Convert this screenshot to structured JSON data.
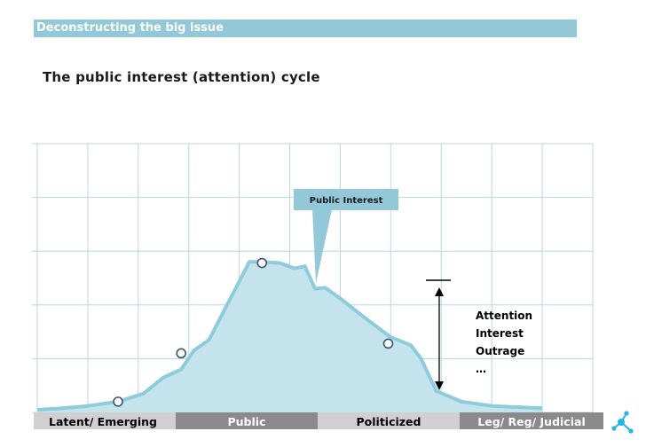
{
  "header": {
    "title": "Deconstructing the big issue"
  },
  "subtitle": "The public interest (attention) cycle",
  "callout": "Public Interest",
  "arrow_notes": [
    "Attention",
    "Interest",
    "Outrage",
    "…"
  ],
  "stages": [
    {
      "label": "Latent/ Emerging",
      "bg": "#d0d0d0",
      "fg": "#000000"
    },
    {
      "label": "Public",
      "bg": "#8a8a8a",
      "fg": "#ffffff"
    },
    {
      "label": "Politicized",
      "bg": "#d0d0d0",
      "fg": "#000000"
    },
    {
      "label": "Leg/ Reg/ Judicial",
      "bg": "#8a8a8a",
      "fg": "#ffffff"
    }
  ],
  "colors": {
    "header_bar": "#92c8d8",
    "grid": "#b8d6e6",
    "curve_fill": "#c4e3ec",
    "curve_line": "#8ecbdb",
    "marker_stroke": "#3c5470",
    "logo": "#27b3e3"
  },
  "chart_data": {
    "type": "area",
    "title": "The public interest (attention) cycle",
    "xlabel": "",
    "ylabel": "",
    "grid": true,
    "xlim": [
      0,
      11
    ],
    "ylim": [
      0,
      5
    ],
    "x": [
      0,
      0.5,
      1.0,
      1.6,
      2.1,
      2.5,
      2.85,
      3.1,
      3.4,
      4.2,
      4.45,
      4.8,
      5.1,
      5.3,
      5.5,
      5.7,
      6.0,
      6.5,
      7.0,
      7.4,
      7.6,
      7.9,
      8.4,
      9.0,
      10.0
    ],
    "values": [
      0.05,
      0.08,
      0.12,
      0.2,
      0.35,
      0.65,
      0.8,
      1.15,
      1.35,
      2.8,
      2.8,
      2.78,
      2.68,
      2.72,
      2.3,
      2.32,
      2.12,
      1.75,
      1.4,
      1.25,
      1.0,
      0.4,
      0.2,
      0.12,
      0.08
    ],
    "markers": [
      {
        "x": 1.6,
        "y": 0.2
      },
      {
        "x": 2.85,
        "y": 1.1
      },
      {
        "x": 4.45,
        "y": 2.78
      },
      {
        "x": 6.95,
        "y": 1.28
      }
    ],
    "callout_point": {
      "x": 5.5,
      "y": 2.3
    }
  }
}
